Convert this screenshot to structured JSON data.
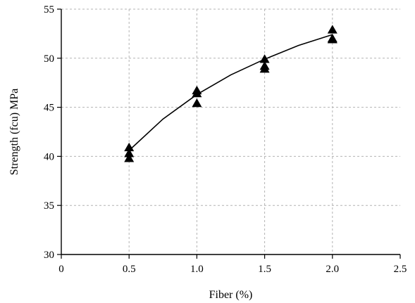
{
  "chart_data": {
    "type": "scatter",
    "xlabel": "Fiber (%)",
    "ylabel": "Strength (fcu) MPa",
    "xlim": [
      0,
      2.5
    ],
    "ylim": [
      30,
      55
    ],
    "x_ticks": [
      "0",
      "0.5",
      "1.0",
      "1.5",
      "2.0",
      "2.5"
    ],
    "x_tick_values": [
      0,
      0.5,
      1.0,
      1.5,
      2.0,
      2.5
    ],
    "y_ticks": [
      "30",
      "35",
      "40",
      "45",
      "50",
      "55"
    ],
    "y_tick_values": [
      30,
      35,
      40,
      45,
      50,
      55
    ],
    "grid": true,
    "marker": "triangle",
    "colors": {
      "marker": "#000000",
      "line": "#000000",
      "grid": "#b3b3b3"
    },
    "points": [
      {
        "x": 0.5,
        "y": 40.9
      },
      {
        "x": 0.5,
        "y": 40.3
      },
      {
        "x": 0.5,
        "y": 39.8
      },
      {
        "x": 1.0,
        "y": 46.7
      },
      {
        "x": 1.0,
        "y": 46.4
      },
      {
        "x": 1.0,
        "y": 45.4
      },
      {
        "x": 1.5,
        "y": 49.9
      },
      {
        "x": 1.5,
        "y": 49.2
      },
      {
        "x": 1.5,
        "y": 48.9
      },
      {
        "x": 2.0,
        "y": 52.9
      },
      {
        "x": 2.0,
        "y": 52.0
      },
      {
        "x": 2.0,
        "y": 51.9
      }
    ],
    "trendline": {
      "type": "fitted-curve",
      "x": [
        0.5,
        0.75,
        1.0,
        1.25,
        1.5,
        1.75,
        2.0
      ],
      "y": [
        40.6,
        43.8,
        46.3,
        48.3,
        49.9,
        51.3,
        52.4
      ]
    }
  }
}
